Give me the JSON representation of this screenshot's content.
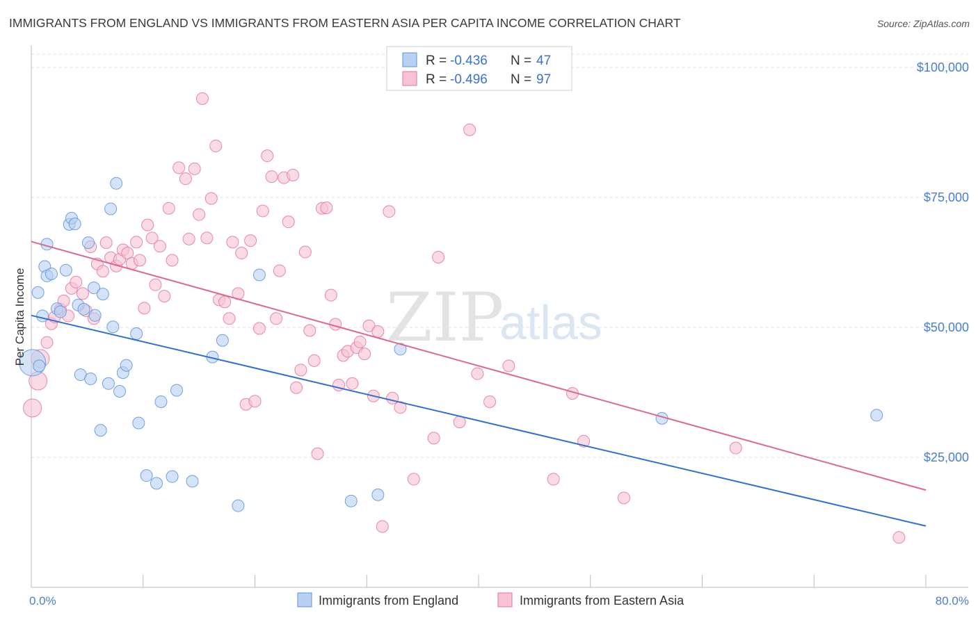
{
  "title": "IMMIGRANTS FROM ENGLAND VS IMMIGRANTS FROM EASTERN ASIA PER CAPITA INCOME CORRELATION CHART",
  "source": "Source: ZipAtlas.com",
  "watermark": {
    "zip": "ZIP",
    "atlas": "atlas"
  },
  "colors": {
    "blue": "#5b93d9",
    "blue_fill": "#b8d1f3",
    "pink": "#e8739a",
    "pink_fill": "#f7c3d4",
    "blue_line": "#2f6fcf",
    "pink_line": "#e06690",
    "tick_label": "#4a7fcc",
    "grid": "#dcdcdc"
  },
  "legend": {
    "rows": [
      {
        "r_label": "R = ",
        "r_value": "-0.436",
        "n_label": "N = ",
        "n_value": "47",
        "series": "england"
      },
      {
        "r_label": "R = ",
        "r_value": "-0.496",
        "n_label": "N = ",
        "n_value": "97",
        "series": "eastern_asia"
      }
    ]
  },
  "bottom_legend": [
    {
      "label": "Immigrants from England",
      "series": "england"
    },
    {
      "label": "Immigrants from Eastern Asia",
      "series": "eastern_asia"
    }
  ],
  "chart_data": {
    "type": "scatter",
    "title": "IMMIGRANTS FROM ENGLAND VS IMMIGRANTS FROM EASTERN ASIA PER CAPITA INCOME CORRELATION CHART",
    "xlabel": "",
    "ylabel": "Per Capita Income",
    "xlim": [
      0,
      80
    ],
    "ylim": [
      0,
      105000
    ],
    "grid": true,
    "legend_position": "top-center",
    "x_tick_labels": [
      {
        "value": 0,
        "label": "0.0%"
      },
      {
        "value": 80,
        "label": "80.0%"
      }
    ],
    "y_tick_labels": [
      {
        "value": 25000,
        "label": "$25,000"
      },
      {
        "value": 50000,
        "label": "$50,000"
      },
      {
        "value": 75000,
        "label": "$75,000"
      },
      {
        "value": 100000,
        "label": "$100,000"
      }
    ],
    "series": [
      {
        "name": "Immigrants from England",
        "key": "england",
        "r": -0.436,
        "n": 47,
        "trend": {
          "x0": 0,
          "y0": 52300,
          "x1": 80,
          "y1": 11800
        },
        "points": [
          [
            0.1,
            43200,
            3
          ],
          [
            0.6,
            56700,
            1
          ],
          [
            0.7,
            42600,
            1
          ],
          [
            1.2,
            61700,
            1
          ],
          [
            1.4,
            59900,
            1
          ],
          [
            1.4,
            66000,
            1
          ],
          [
            1.8,
            60300,
            1
          ],
          [
            2.3,
            53600,
            1
          ],
          [
            2.6,
            53000,
            1
          ],
          [
            3.1,
            61000,
            1
          ],
          [
            3.4,
            69800,
            1
          ],
          [
            3.6,
            71000,
            1
          ],
          [
            3.9,
            69900,
            1
          ],
          [
            4.2,
            54300,
            1
          ],
          [
            4.4,
            40900,
            1
          ],
          [
            4.7,
            53500,
            1
          ],
          [
            5.1,
            66300,
            1
          ],
          [
            5.3,
            40100,
            1
          ],
          [
            5.6,
            57600,
            1
          ],
          [
            5.7,
            52300,
            1
          ],
          [
            6.2,
            30200,
            1
          ],
          [
            6.4,
            56400,
            1
          ],
          [
            6.9,
            39200,
            1
          ],
          [
            7.1,
            72800,
            1
          ],
          [
            7.3,
            50100,
            1
          ],
          [
            7.6,
            77700,
            1
          ],
          [
            7.9,
            37700,
            1
          ],
          [
            8.2,
            41300,
            1
          ],
          [
            8.5,
            42700,
            1
          ],
          [
            9.4,
            48800,
            1
          ],
          [
            9.6,
            31600,
            1
          ],
          [
            10.3,
            21500,
            1
          ],
          [
            11.2,
            20000,
            1
          ],
          [
            11.6,
            35700,
            1
          ],
          [
            12.6,
            21300,
            1
          ],
          [
            13.0,
            37900,
            1
          ],
          [
            14.4,
            20400,
            1
          ],
          [
            16.2,
            44300,
            1
          ],
          [
            17.1,
            47500,
            1
          ],
          [
            18.5,
            15700,
            1
          ],
          [
            20.4,
            60100,
            1
          ],
          [
            28.6,
            16600,
            1
          ],
          [
            31.0,
            17800,
            1
          ],
          [
            33.0,
            45800,
            1
          ],
          [
            56.4,
            32500,
            1
          ],
          [
            75.6,
            33100,
            1
          ],
          [
            1.0,
            52200,
            1
          ]
        ]
      },
      {
        "name": "Immigrants from Eastern Asia",
        "key": "eastern_asia",
        "r": -0.496,
        "n": 97,
        "trend": {
          "x0": 0,
          "y0": 66500,
          "x1": 80,
          "y1": 18700
        },
        "points": [
          [
            0.1,
            34500,
            2
          ],
          [
            0.6,
            39700,
            2
          ],
          [
            0.8,
            44000,
            2
          ],
          [
            1.4,
            47100,
            1
          ],
          [
            1.8,
            50700,
            1
          ],
          [
            2.1,
            52000,
            1
          ],
          [
            2.6,
            53500,
            1
          ],
          [
            2.9,
            55100,
            1
          ],
          [
            3.3,
            52200,
            1
          ],
          [
            3.6,
            57500,
            1
          ],
          [
            4.0,
            58700,
            1
          ],
          [
            4.6,
            56500,
            1
          ],
          [
            4.9,
            53200,
            1
          ],
          [
            5.3,
            65500,
            1
          ],
          [
            5.6,
            51700,
            1
          ],
          [
            5.9,
            62200,
            1
          ],
          [
            6.4,
            60800,
            1
          ],
          [
            6.7,
            66300,
            1
          ],
          [
            7.1,
            63400,
            1
          ],
          [
            7.6,
            61800,
            1
          ],
          [
            7.9,
            63100,
            1
          ],
          [
            8.2,
            64900,
            1
          ],
          [
            8.6,
            64300,
            1
          ],
          [
            9.0,
            62300,
            1
          ],
          [
            9.4,
            66400,
            1
          ],
          [
            9.7,
            62900,
            1
          ],
          [
            10.1,
            53700,
            1
          ],
          [
            10.4,
            69700,
            1
          ],
          [
            10.8,
            67200,
            1
          ],
          [
            11.1,
            58200,
            1
          ],
          [
            11.5,
            65600,
            1
          ],
          [
            11.9,
            56000,
            1
          ],
          [
            12.3,
            72900,
            1
          ],
          [
            12.6,
            62900,
            1
          ],
          [
            13.2,
            80700,
            1
          ],
          [
            13.8,
            78600,
            1
          ],
          [
            14.1,
            67000,
            1
          ],
          [
            14.6,
            80500,
            1
          ],
          [
            15.0,
            71700,
            1
          ],
          [
            15.3,
            94000,
            1
          ],
          [
            15.7,
            67200,
            1
          ],
          [
            16.1,
            74800,
            1
          ],
          [
            16.5,
            84900,
            1
          ],
          [
            16.8,
            55300,
            1
          ],
          [
            17.3,
            54900,
            1
          ],
          [
            17.7,
            51700,
            1
          ],
          [
            18.0,
            66400,
            1
          ],
          [
            18.5,
            56500,
            1
          ],
          [
            18.8,
            64300,
            1
          ],
          [
            19.2,
            35200,
            1
          ],
          [
            19.6,
            66700,
            1
          ],
          [
            20.0,
            35800,
            1
          ],
          [
            20.4,
            49800,
            1
          ],
          [
            20.7,
            72400,
            1
          ],
          [
            21.1,
            83000,
            1
          ],
          [
            21.5,
            79000,
            1
          ],
          [
            21.9,
            51700,
            1
          ],
          [
            22.2,
            60900,
            1
          ],
          [
            22.6,
            78800,
            1
          ],
          [
            23.0,
            70300,
            1
          ],
          [
            23.4,
            79300,
            1
          ],
          [
            23.7,
            38400,
            1
          ],
          [
            24.1,
            41800,
            1
          ],
          [
            24.5,
            64500,
            1
          ],
          [
            24.9,
            49400,
            1
          ],
          [
            25.3,
            43600,
            1
          ],
          [
            25.6,
            25700,
            1
          ],
          [
            26.0,
            72900,
            1
          ],
          [
            26.4,
            73000,
            1
          ],
          [
            26.8,
            56200,
            1
          ],
          [
            27.2,
            50600,
            1
          ],
          [
            27.5,
            38900,
            1
          ],
          [
            27.9,
            44600,
            1
          ],
          [
            28.3,
            45400,
            1
          ],
          [
            28.7,
            39200,
            1
          ],
          [
            29.1,
            46100,
            1
          ],
          [
            29.4,
            47200,
            1
          ],
          [
            29.8,
            44900,
            1
          ],
          [
            30.2,
            50300,
            1
          ],
          [
            30.6,
            36800,
            1
          ],
          [
            31.0,
            49200,
            1
          ],
          [
            31.4,
            11700,
            1
          ],
          [
            32.0,
            72300,
            1
          ],
          [
            32.3,
            36400,
            1
          ],
          [
            33.0,
            34600,
            1
          ],
          [
            34.2,
            20800,
            1
          ],
          [
            36.0,
            28700,
            1
          ],
          [
            36.4,
            63500,
            1
          ],
          [
            38.3,
            31800,
            1
          ],
          [
            39.2,
            88000,
            1
          ],
          [
            39.9,
            41100,
            1
          ],
          [
            41.0,
            35700,
            1
          ],
          [
            42.7,
            42600,
            1
          ],
          [
            46.7,
            20800,
            1
          ],
          [
            48.4,
            37300,
            1
          ],
          [
            49.4,
            28100,
            1
          ],
          [
            53.0,
            17200,
            1
          ],
          [
            63.0,
            26800,
            1
          ],
          [
            77.6,
            9600,
            1
          ]
        ]
      }
    ]
  }
}
